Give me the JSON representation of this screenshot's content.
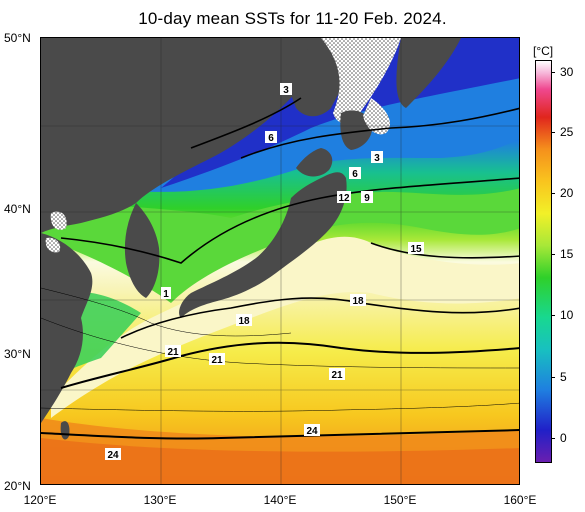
{
  "title": "10-day mean SSTs for 11-20 Feb. 2024.",
  "colorbar": {
    "unit": "[°C]",
    "ticks": [
      "30",
      "25",
      "20",
      "15",
      "10",
      "5",
      "0"
    ]
  },
  "axes": {
    "lat_labels": [
      "50°N",
      "40°N",
      "30°N",
      "20°N"
    ],
    "lon_labels": [
      "120°E",
      "130°E",
      "140°E",
      "150°E",
      "160°E"
    ]
  },
  "contour_labels": [
    "3",
    "6",
    "3",
    "6",
    "12",
    "9",
    "15",
    "18",
    "18",
    "21",
    "21",
    "21",
    "24",
    "24",
    "1"
  ],
  "colors": {
    "land": "#4a4a4a",
    "warm": "#f5901c",
    "yellow": "#f2f028"
  }
}
